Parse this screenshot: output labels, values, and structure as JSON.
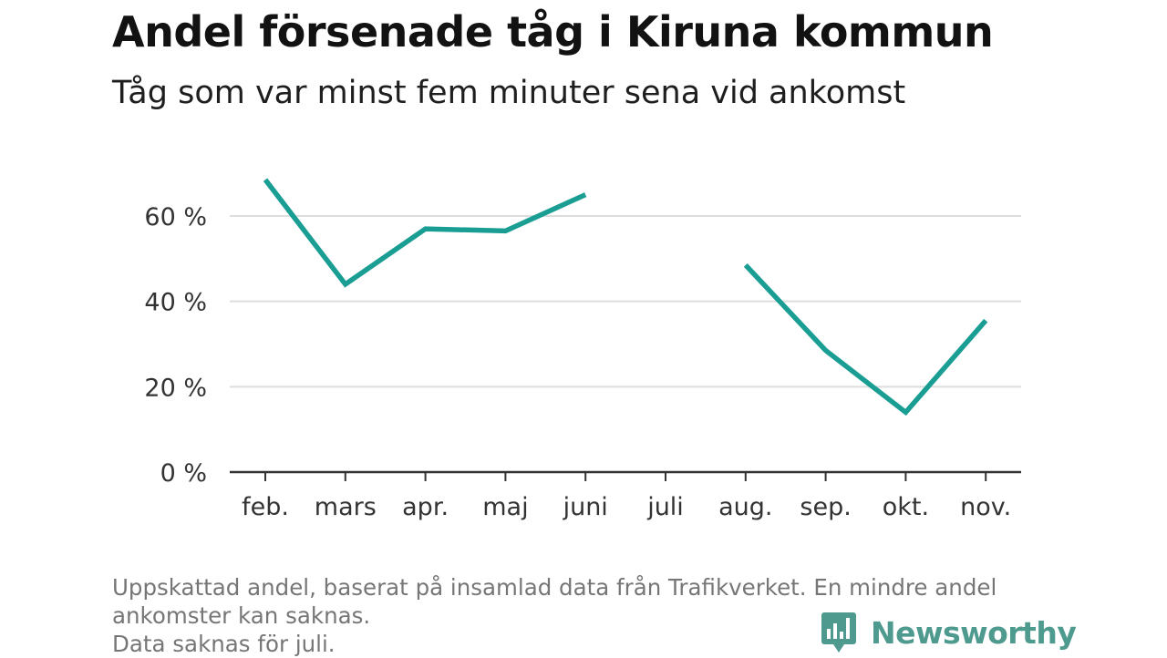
{
  "title": "Andel försenade tåg i Kiruna kommun",
  "subtitle": "Tåg som var minst fem minuter sena vid ankomst",
  "chart_data": {
    "type": "line",
    "categories": [
      "feb.",
      "mars",
      "apr.",
      "maj",
      "juni",
      "juli",
      "aug.",
      "sep.",
      "okt.",
      "nov."
    ],
    "series": [
      {
        "values": [
          68.5,
          44,
          57,
          56.5,
          65,
          null,
          48.5,
          28.5,
          14,
          35.5
        ],
        "color": "#1a9e94"
      }
    ],
    "y_ticks": [
      0,
      20,
      40,
      60
    ],
    "y_tick_labels": [
      "0 %",
      "20 %",
      "40 %",
      "60 %"
    ],
    "ylim": [
      0,
      70
    ],
    "y_unit": "%",
    "grid": true,
    "legend": "none",
    "xlabel": "",
    "ylabel": ""
  },
  "footnote": {
    "lines": [
      "Uppskattad andel, baserat på insamlad data från Trafikverket. En mindre andel",
      "ankomster kan saknas.",
      "Data saknas för juli."
    ]
  },
  "brand": {
    "name": "Newsworthy",
    "icon": "newsworthy-logo-icon",
    "color": "#4f9a8e"
  }
}
